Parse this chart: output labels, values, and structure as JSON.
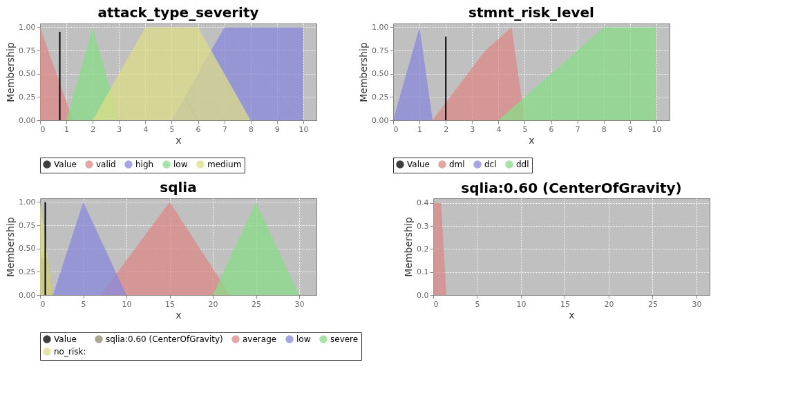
{
  "chart_data": [
    {
      "type": "area",
      "title": "attack_type_severity",
      "xlabel": "x",
      "ylabel": "Membership",
      "xlim": [
        0,
        10.5
      ],
      "ylim": [
        0,
        1.04
      ],
      "xticks": [
        0,
        1,
        2,
        3,
        4,
        5,
        6,
        7,
        8,
        9,
        10
      ],
      "yticks": [
        {
          "value": 0,
          "label": "0.00"
        },
        {
          "value": 0.25,
          "label": "0.25"
        },
        {
          "value": 0.5,
          "label": "0.50"
        },
        {
          "value": 0.75,
          "label": "0.75"
        },
        {
          "value": 1,
          "label": "1.00"
        }
      ],
      "grid": true,
      "legend": "bottom",
      "series": [
        {
          "name": "Value",
          "type": "line",
          "color": "#000000",
          "x": [
            0.75,
            0.75
          ],
          "values": [
            0,
            0.95
          ]
        },
        {
          "name": "valid",
          "color": "#dc8888",
          "x": [
            0,
            1.25
          ],
          "values": [
            1,
            0
          ]
        },
        {
          "name": "high",
          "color": "#8888dc",
          "x": [
            5,
            7,
            10,
            10
          ],
          "values": [
            0,
            1,
            1,
            0
          ]
        },
        {
          "name": "low",
          "color": "#88dc88",
          "x": [
            1,
            2,
            3
          ],
          "values": [
            0,
            1,
            0
          ]
        },
        {
          "name": "medium",
          "color": "#dcdc88",
          "x": [
            2,
            4,
            6,
            8
          ],
          "values": [
            0,
            1,
            1,
            0
          ]
        }
      ]
    },
    {
      "type": "area",
      "title": "stmnt_risk_level",
      "xlabel": "x",
      "ylabel": "Membership",
      "xlim": [
        0,
        10.5
      ],
      "ylim": [
        0,
        1.04
      ],
      "xticks": [
        0,
        1,
        2,
        3,
        4,
        5,
        6,
        7,
        8,
        9,
        10
      ],
      "yticks": [
        {
          "value": 0,
          "label": "0.00"
        },
        {
          "value": 0.25,
          "label": "0.25"
        },
        {
          "value": 0.5,
          "label": "0.50"
        },
        {
          "value": 0.75,
          "label": "0.75"
        },
        {
          "value": 1,
          "label": "1.00"
        }
      ],
      "grid": true,
      "legend": "bottom",
      "series": [
        {
          "name": "Value",
          "type": "line",
          "color": "#000000",
          "x": [
            2,
            2
          ],
          "values": [
            0,
            0.9
          ]
        },
        {
          "name": "dml",
          "color": "#dc8888",
          "x": [
            1.5,
            3.5,
            4.5,
            5
          ],
          "values": [
            0,
            0.75,
            1,
            0
          ]
        },
        {
          "name": "dcl",
          "color": "#8888dc",
          "x": [
            0,
            1,
            1.5
          ],
          "values": [
            0,
            1,
            0
          ]
        },
        {
          "name": "ddl",
          "color": "#88dc88",
          "x": [
            4,
            8,
            10,
            10
          ],
          "values": [
            0,
            1,
            1,
            0
          ]
        }
      ]
    },
    {
      "type": "area",
      "title": "sqlia",
      "xlabel": "x",
      "ylabel": "Membership",
      "xlim": [
        0,
        32
      ],
      "ylim": [
        0,
        1.04
      ],
      "xticks": [
        0,
        5,
        10,
        15,
        20,
        25,
        30
      ],
      "yticks": [
        {
          "value": 0,
          "label": "0.00"
        },
        {
          "value": 0.25,
          "label": "0.25"
        },
        {
          "value": 0.5,
          "label": "0.50"
        },
        {
          "value": 0.75,
          "label": "0.75"
        },
        {
          "value": 1,
          "label": "1.00"
        }
      ],
      "grid": true,
      "legend": "bottom",
      "series": [
        {
          "name": "Value",
          "type": "line",
          "color": "#000000",
          "x": [
            0.6,
            0.6
          ],
          "values": [
            0,
            1
          ]
        },
        {
          "name": "sqlia:0.60 (CenterOfGravity)",
          "color": "#8c8c70",
          "x": [
            0,
            0.9,
            1.5
          ],
          "values": [
            0.4,
            0.4,
            0
          ]
        },
        {
          "name": "average",
          "color": "#dc8888",
          "x": [
            7,
            15,
            22
          ],
          "values": [
            0,
            1,
            0
          ]
        },
        {
          "name": "low",
          "color": "#8888dc",
          "x": [
            1.5,
            5,
            10
          ],
          "values": [
            0,
            1,
            0
          ]
        },
        {
          "name": "severe",
          "color": "#88dc88",
          "x": [
            20,
            25,
            30
          ],
          "values": [
            0,
            1,
            0
          ]
        },
        {
          "name": "no_risk:",
          "color": "#dcdc88",
          "x": [
            0,
            1.5
          ],
          "values": [
            1,
            0
          ]
        }
      ]
    },
    {
      "type": "area",
      "title": "sqlia:0.60 (CenterOfGravity)",
      "xlabel": "x",
      "ylabel": "Membership",
      "xlim": [
        0,
        31.5
      ],
      "ylim": [
        0,
        0.42
      ],
      "xticks": [
        0,
        5,
        10,
        15,
        20,
        25,
        30
      ],
      "yticks": [
        {
          "value": 0,
          "label": "0.0"
        },
        {
          "value": 0.1,
          "label": "0.1"
        },
        {
          "value": 0.2,
          "label": "0.2"
        },
        {
          "value": 0.3,
          "label": "0.3"
        },
        {
          "value": 0.4,
          "label": "0.4"
        }
      ],
      "grid": true,
      "series": [
        {
          "color": "#dc8888",
          "x": [
            0,
            0.9,
            1.5
          ],
          "values": [
            0.4,
            0.4,
            0
          ]
        }
      ]
    }
  ]
}
